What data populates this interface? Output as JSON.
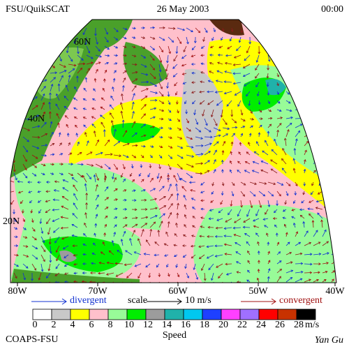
{
  "header": {
    "left": "FSU/QuikSCAT",
    "center": "26 May 2003",
    "right": "00:00"
  },
  "map": {
    "lat_labels": [
      "60N",
      "40N",
      "20N"
    ],
    "lon_labels": [
      "80W",
      "70W",
      "60W",
      "50W",
      "40W"
    ]
  },
  "legend": {
    "divergent": "divergent",
    "scale": "scale",
    "scale_value": "10 m/s",
    "convergent": "convergent"
  },
  "colorbar": {
    "ticks": [
      0,
      2,
      4,
      6,
      8,
      10,
      12,
      14,
      16,
      18,
      20,
      22,
      24,
      26,
      28
    ],
    "colors": [
      "#ffffff",
      "#c8c8c8",
      "#ffff00",
      "#ffc0cb",
      "#98fb98",
      "#00ee00",
      "#9c9c9c",
      "#20b2aa",
      "#00c8f0",
      "#1e40ff",
      "#ff40ff",
      "#a070ff",
      "#ff0000",
      "#c83200",
      "#000000"
    ],
    "unit": "m/s",
    "title": "Speed"
  },
  "footer": {
    "left": "COAPS-FSU",
    "right": "Yan Gu"
  }
}
